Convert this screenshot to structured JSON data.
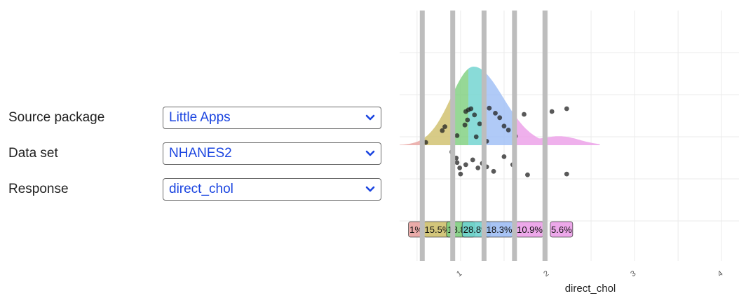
{
  "controls": {
    "source_package": {
      "label": "Source package",
      "value": "Little Apps"
    },
    "data_set": {
      "label": "Data set",
      "value": "NHANES2"
    },
    "response": {
      "label": "Response",
      "value": "direct_chol"
    }
  },
  "colors": {
    "select_text": "#1a44e0",
    "bands": [
      "#e8a3a0",
      "#cfc06d",
      "#7fcf7f",
      "#6fd3d0",
      "#9fbef5",
      "#ec9fe8"
    ],
    "points": "#222222",
    "vlines": "#bdbdbd"
  },
  "chart_data": {
    "type": "scatter",
    "xlabel": "direct_chol",
    "xlim": [
      0.3,
      4.2
    ],
    "x_ticks": [
      1,
      2,
      3,
      4
    ],
    "grid": true,
    "density_peak": 1.15,
    "quantile_lines": [
      0.56,
      0.91,
      1.27,
      1.62,
      1.97
    ],
    "bands": [
      {
        "label": "1%",
        "from": 0.3,
        "to": 0.56
      },
      {
        "label": "15.5%",
        "from": 0.56,
        "to": 0.91
      },
      {
        "label": "18.8%",
        "from": 0.91,
        "to": 1.09
      },
      {
        "label": "28.8%",
        "from": 1.09,
        "to": 1.27
      },
      {
        "label": "18.3%",
        "from": 1.27,
        "to": 1.62
      },
      {
        "label": "10.9%",
        "from": 1.62,
        "to": 1.97
      },
      {
        "label": "5.6%",
        "from": 1.97,
        "to": 2.6
      }
    ],
    "points_above": [
      {
        "x": 0.6,
        "y": 0.0
      },
      {
        "x": 0.79,
        "y": 0.21
      },
      {
        "x": 0.82,
        "y": 0.28
      },
      {
        "x": 0.96,
        "y": 0.12
      },
      {
        "x": 1.05,
        "y": 0.31
      },
      {
        "x": 1.06,
        "y": 0.55
      },
      {
        "x": 1.08,
        "y": 0.4
      },
      {
        "x": 1.09,
        "y": 0.58
      },
      {
        "x": 1.12,
        "y": 0.6
      },
      {
        "x": 1.16,
        "y": 0.49
      },
      {
        "x": 1.18,
        "y": 0.1
      },
      {
        "x": 1.22,
        "y": 0.33
      },
      {
        "x": 1.3,
        "y": 0.02
      },
      {
        "x": 1.33,
        "y": 0.61
      },
      {
        "x": 1.4,
        "y": 0.52
      },
      {
        "x": 1.45,
        "y": 0.44
      },
      {
        "x": 1.5,
        "y": 0.29
      },
      {
        "x": 1.55,
        "y": 0.22
      },
      {
        "x": 1.63,
        "y": 0.11
      },
      {
        "x": 1.73,
        "y": 0.5
      },
      {
        "x": 2.05,
        "y": 0.55
      },
      {
        "x": 2.22,
        "y": 0.6
      }
    ],
    "points_below": [
      {
        "x": 0.9,
        "y": 0.12
      },
      {
        "x": 0.95,
        "y": 0.35
      },
      {
        "x": 0.96,
        "y": 0.52
      },
      {
        "x": 0.99,
        "y": 0.72
      },
      {
        "x": 1.0,
        "y": 0.95
      },
      {
        "x": 1.06,
        "y": 0.6
      },
      {
        "x": 1.14,
        "y": 0.42
      },
      {
        "x": 1.2,
        "y": 0.72
      },
      {
        "x": 1.25,
        "y": 0.55
      },
      {
        "x": 1.3,
        "y": 0.68
      },
      {
        "x": 1.38,
        "y": 0.85
      },
      {
        "x": 1.5,
        "y": 0.3
      },
      {
        "x": 1.6,
        "y": 0.6
      },
      {
        "x": 1.77,
        "y": 0.98
      },
      {
        "x": 2.22,
        "y": 0.95
      }
    ]
  }
}
